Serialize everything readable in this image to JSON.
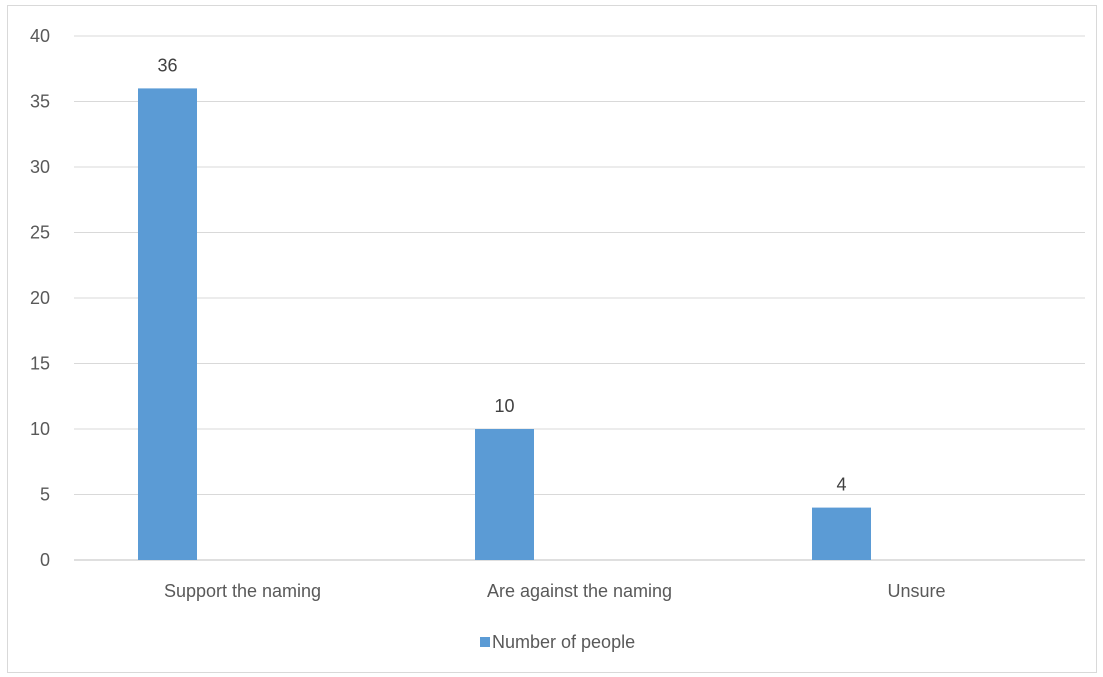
{
  "chart_data": {
    "type": "bar",
    "categories": [
      "Support the naming",
      "Are against the naming",
      "Unsure"
    ],
    "series": [
      {
        "name": "Number of people",
        "values": [
          36,
          10,
          4
        ],
        "color": "#5b9bd5"
      }
    ],
    "ylim": [
      0,
      40
    ],
    "yticks": [
      0,
      5,
      10,
      15,
      20,
      25,
      30,
      35,
      40
    ],
    "grid": true,
    "legend_position": "bottom",
    "data_labels": true
  }
}
